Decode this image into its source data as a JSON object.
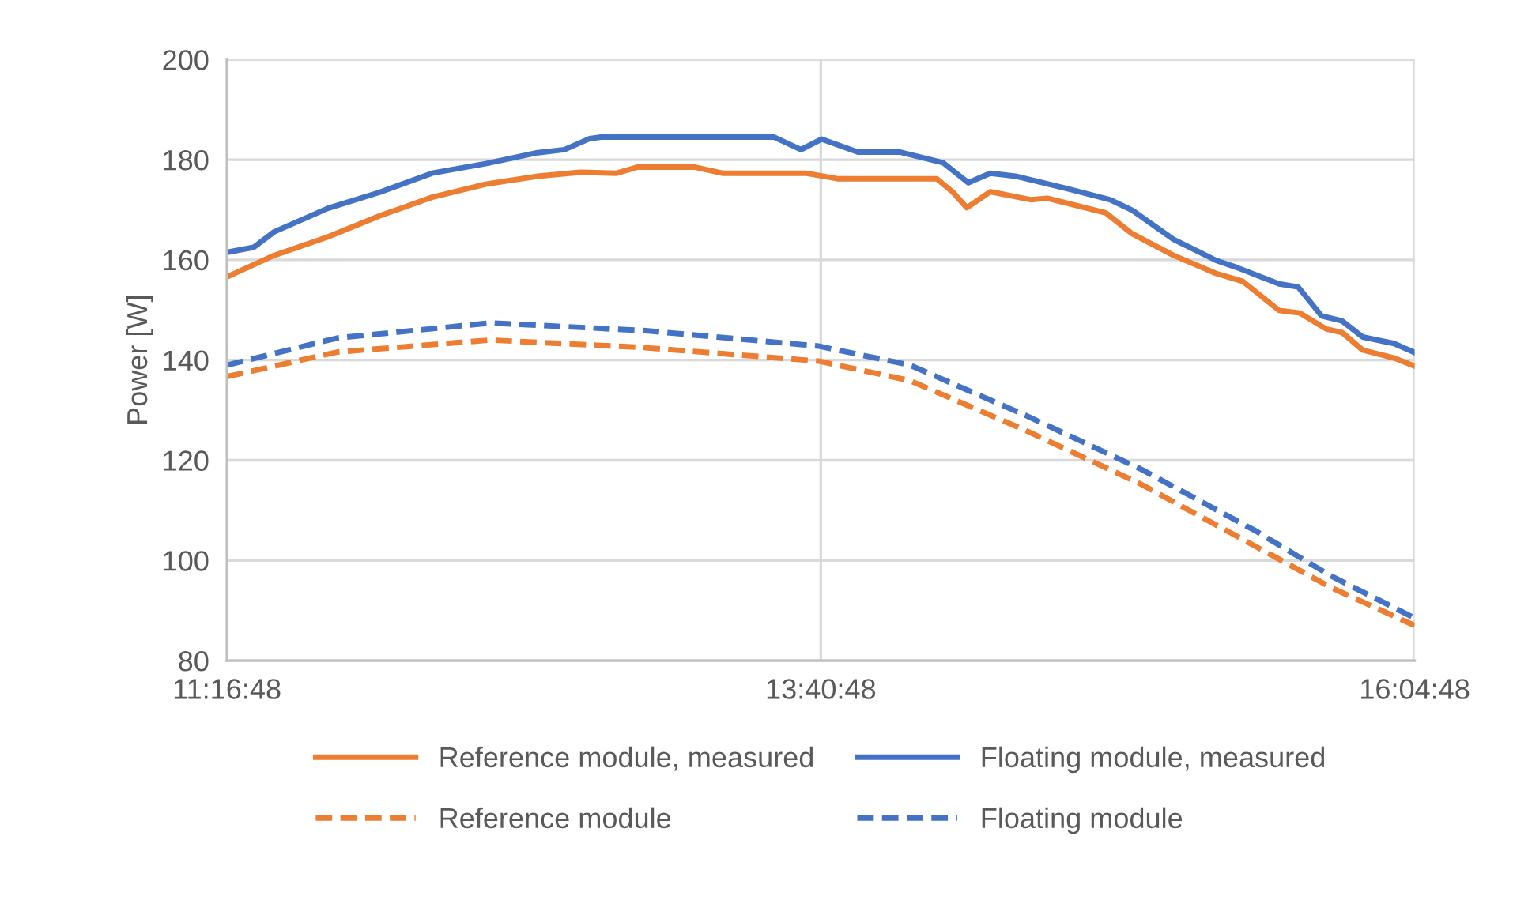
{
  "chart_data": {
    "type": "line",
    "ylabel": "Power [W]",
    "xlim": [
      11.28,
      16.08
    ],
    "xticks": [
      {
        "value": 11.28,
        "label": "11:16:48"
      },
      {
        "value": 13.68,
        "label": "13:40:48"
      },
      {
        "value": 16.08,
        "label": "16:04:48"
      }
    ],
    "ylim": [
      80,
      200
    ],
    "yticks": [
      80,
      100,
      120,
      140,
      160,
      180,
      200
    ],
    "grid": true,
    "legend": "bottom",
    "series": [
      {
        "name": "Reference module, measured",
        "color": "#ed7d31",
        "line_style": "solid",
        "x": [
          11.28,
          11.471,
          11.688,
          11.898,
          12.109,
          12.325,
          12.536,
          12.708,
          12.855,
          12.937,
          13.173,
          13.282,
          13.619,
          13.747,
          14.148,
          14.212,
          14.27,
          14.365,
          14.531,
          14.595,
          14.831,
          14.939,
          15.105,
          15.277,
          15.386,
          15.532,
          15.615,
          15.723,
          15.787,
          15.87,
          15.997,
          16.08
        ],
        "values": [
          156.6,
          160.9,
          164.6,
          168.8,
          172.5,
          175.1,
          176.7,
          177.5,
          177.3,
          178.5,
          178.5,
          177.3,
          177.3,
          176.2,
          176.2,
          173.6,
          170.4,
          173.6,
          172,
          172.3,
          169.4,
          165.2,
          160.9,
          157.3,
          155.7,
          149.9,
          149.4,
          146.2,
          145.5,
          142,
          140.4,
          138.8
        ]
      },
      {
        "name": "Floating module, measured",
        "color": "#4472c4",
        "line_style": "solid",
        "x": [
          11.28,
          11.388,
          11.471,
          11.688,
          11.898,
          12.109,
          12.325,
          12.536,
          12.644,
          12.746,
          12.791,
          13.492,
          13.6,
          13.683,
          13.83,
          14.002,
          14.174,
          14.276,
          14.365,
          14.467,
          14.684,
          14.85,
          14.939,
          15.105,
          15.277,
          15.36,
          15.532,
          15.609,
          15.704,
          15.787,
          15.87,
          15.997,
          16.08
        ],
        "values": [
          161.5,
          162.5,
          165.6,
          170.3,
          173.5,
          177.3,
          179.2,
          181.4,
          182,
          184.2,
          184.5,
          184.5,
          182,
          184.1,
          181.5,
          181.5,
          179.4,
          175.4,
          177.3,
          176.7,
          174.1,
          172,
          169.9,
          164.1,
          159.9,
          158.5,
          155.2,
          154.6,
          148.8,
          147.8,
          144.6,
          143.3,
          141.5
        ]
      },
      {
        "name": "Reference module",
        "color": "#ed7d31",
        "line_style": "dashed",
        "x": [
          11.28,
          11.726,
          12.345,
          12.963,
          13.67,
          14.04,
          14.506,
          14.971,
          15.43,
          15.742,
          16.08
        ],
        "values": [
          136.7,
          141.6,
          144,
          142.5,
          139.8,
          135.9,
          126,
          115.3,
          103,
          94.6,
          87
        ]
      },
      {
        "name": "Floating module",
        "color": "#4472c4",
        "line_style": "dashed",
        "x": [
          11.28,
          11.726,
          12.345,
          12.963,
          13.67,
          14.04,
          14.506,
          14.971,
          15.43,
          15.742,
          16.08
        ],
        "values": [
          139,
          144.4,
          147.4,
          145.9,
          142.8,
          139,
          129,
          118.3,
          106.1,
          96.9,
          88.5
        ]
      }
    ]
  }
}
